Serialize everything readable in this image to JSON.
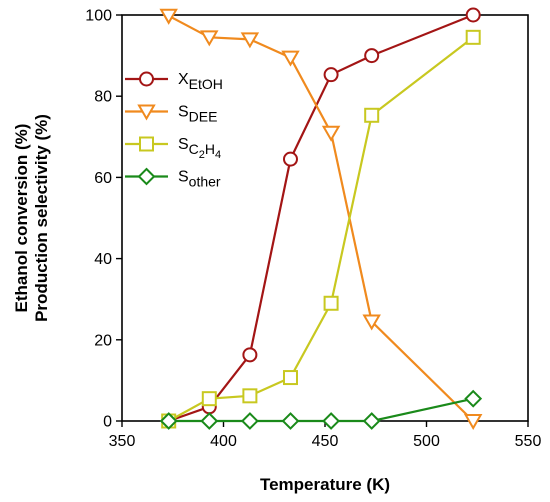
{
  "chart_data": {
    "type": "line",
    "xlabel": "Temperature (K)",
    "ylabel": [
      "Ethanol conversion (%)",
      "Production selectivity (%)"
    ],
    "xlim": [
      350,
      550
    ],
    "ylim": [
      0,
      100
    ],
    "xticks": [
      350,
      400,
      450,
      500,
      550
    ],
    "yticks": [
      0,
      20,
      40,
      60,
      80,
      100
    ],
    "grid": false,
    "legend_position": "left",
    "series": [
      {
        "name": "X_EtOH",
        "legend_main": "X",
        "legend_sub": "EtOH",
        "legend_sub2": "",
        "legend_sub3": "",
        "marker": "circle",
        "color": "#a31515",
        "points": [
          [
            373,
            0
          ],
          [
            393,
            3.5
          ],
          [
            413,
            16.3
          ],
          [
            433,
            64.5
          ],
          [
            453,
            85.3
          ],
          [
            473,
            90
          ],
          [
            523,
            100
          ]
        ]
      },
      {
        "name": "S_DEE",
        "legend_main": "S",
        "legend_sub": "DEE",
        "legend_sub2": "",
        "legend_sub3": "",
        "marker": "triangle-down",
        "color": "#f08a1e",
        "points": [
          [
            373,
            99.8
          ],
          [
            393,
            94.5
          ],
          [
            413,
            94
          ],
          [
            433,
            89.5
          ],
          [
            453,
            71
          ],
          [
            473,
            24.5
          ],
          [
            523,
            0
          ]
        ]
      },
      {
        "name": "S_C2H4",
        "legend_main": "S",
        "legend_sub": "C",
        "legend_sub2": "2",
        "legend_sub3": "H",
        "legend_sub4": "4",
        "marker": "square",
        "color": "#c8c820",
        "points": [
          [
            373,
            0
          ],
          [
            393,
            5.5
          ],
          [
            413,
            6.2
          ],
          [
            433,
            10.7
          ],
          [
            453,
            29
          ],
          [
            473,
            75.3
          ],
          [
            523,
            94.5
          ]
        ]
      },
      {
        "name": "S_other",
        "legend_main": "S",
        "legend_sub": "other",
        "legend_sub2": "",
        "legend_sub3": "",
        "marker": "diamond",
        "color": "#1a8a1a",
        "points": [
          [
            373,
            0
          ],
          [
            393,
            0
          ],
          [
            413,
            0
          ],
          [
            433,
            0
          ],
          [
            453,
            0
          ],
          [
            473,
            0
          ],
          [
            523,
            5.5
          ]
        ]
      }
    ]
  }
}
